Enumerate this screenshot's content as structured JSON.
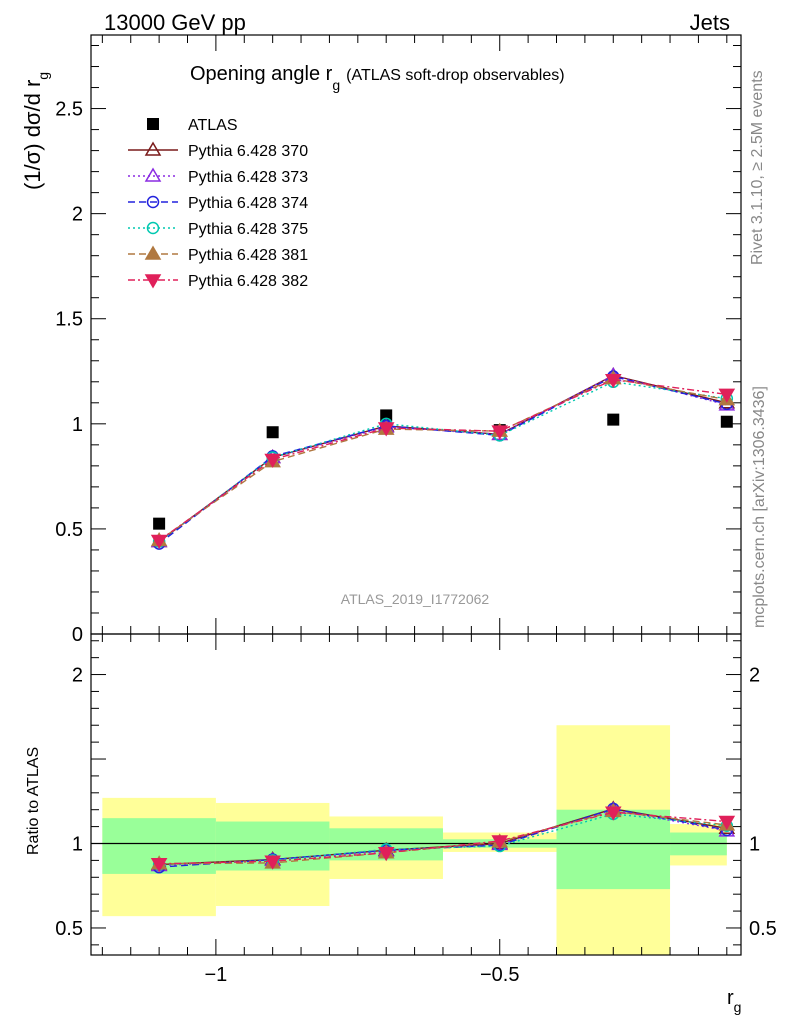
{
  "header": {
    "left": "13000 GeV pp",
    "right": "Jets"
  },
  "side_text": {
    "top": "Rivet 3.1.10, ≥ 2.5M events",
    "bottom": "mcplots.cern.ch [arXiv:1306.3436]"
  },
  "watermark": "ATLAS_2019_I1772062",
  "chart_data": [
    {
      "type": "scatter",
      "title": "Opening angle r",
      "title_sub": "g",
      "title_paren": "(ATLAS soft-drop observables)",
      "ylabel": "(1/σ) dσ/d r",
      "ylabel_sub": "g",
      "xlabel": "",
      "ylim": [
        0,
        2.85
      ],
      "xlim": [
        -1.22,
        -0.075
      ],
      "y_ticks": [
        "0",
        "0.5",
        "1",
        "1.5",
        "2",
        "2.5"
      ],
      "legend_position": "top-left",
      "x": [
        -1.1,
        -0.9,
        -0.7,
        -0.5,
        -0.3,
        -0.1
      ],
      "bin_edges": [
        -1.2,
        -1.0,
        -0.8,
        -0.6,
        -0.4,
        -0.2,
        -0.1
      ],
      "series": [
        {
          "name": "ATLAS",
          "color": "#000000",
          "marker": "square",
          "dash": "",
          "values": [
            0.525,
            0.96,
            1.04,
            0.97,
            1.02,
            1.01
          ]
        },
        {
          "name": "Pythia 6.428 370",
          "color": "#7a1a1a",
          "marker": "triangle-open",
          "dash": "",
          "values": [
            0.44,
            0.84,
            0.99,
            0.95,
            1.23,
            1.1
          ]
        },
        {
          "name": "Pythia 6.428 373",
          "color": "#8a2be2",
          "marker": "triangle-open",
          "dash": "2,3",
          "values": [
            0.44,
            0.84,
            0.985,
            0.95,
            1.23,
            1.09
          ]
        },
        {
          "name": "Pythia 6.428 374",
          "color": "#2222dd",
          "marker": "circle-open",
          "dash": "7,4",
          "values": [
            0.43,
            0.845,
            0.99,
            0.945,
            1.225,
            1.095
          ]
        },
        {
          "name": "Pythia 6.428 375",
          "color": "#00c8b0",
          "marker": "circle-open",
          "dash": "2,3",
          "values": [
            0.44,
            0.84,
            1.0,
            0.945,
            1.2,
            1.12
          ]
        },
        {
          "name": "Pythia 6.428 381",
          "color": "#b07840",
          "marker": "triangle-filled",
          "dash": "7,4",
          "values": [
            0.445,
            0.82,
            0.975,
            0.965,
            1.215,
            1.115
          ]
        },
        {
          "name": "Pythia 6.428 382",
          "color": "#e0205a",
          "marker": "triangle-down-filled",
          "dash": "7,3,2,3",
          "values": [
            0.445,
            0.83,
            0.98,
            0.965,
            1.21,
            1.14
          ]
        }
      ]
    },
    {
      "type": "scatter",
      "title": "",
      "ylabel": "Ratio to ATLAS",
      "xlabel": "r",
      "xlabel_sub": "g",
      "ylim": [
        0.34,
        2.24
      ],
      "xlim": [
        -1.22,
        -0.075
      ],
      "y_ticks": [
        "0.5",
        "1",
        "2"
      ],
      "x_ticks": [
        "−1",
        "−0.5"
      ],
      "reference_line": 1,
      "x": [
        -1.1,
        -0.9,
        -0.7,
        -0.5,
        -0.3,
        -0.1
      ],
      "bands": {
        "inner": {
          "color": "#99ff99",
          "low": [
            0.82,
            0.84,
            0.9,
            0.975,
            0.73,
            0.93
          ],
          "high": [
            1.15,
            1.13,
            1.09,
            1.025,
            1.2,
            1.065
          ]
        },
        "outer": {
          "color": "#ffff99",
          "low": [
            0.57,
            0.63,
            0.79,
            0.95,
            0.34,
            0.87
          ],
          "high": [
            1.27,
            1.24,
            1.16,
            1.065,
            1.7,
            1.115
          ]
        }
      },
      "series": [
        {
          "name": "Pythia 6.428 370",
          "color": "#7a1a1a",
          "marker": "triangle-open",
          "dash": "",
          "values": [
            0.875,
            0.905,
            0.96,
            1.0,
            1.205,
            1.09
          ]
        },
        {
          "name": "Pythia 6.428 373",
          "color": "#8a2be2",
          "marker": "triangle-open",
          "dash": "2,3",
          "values": [
            0.87,
            0.9,
            0.955,
            0.995,
            1.2,
            1.075
          ]
        },
        {
          "name": "Pythia 6.428 374",
          "color": "#2222dd",
          "marker": "circle-open",
          "dash": "7,4",
          "values": [
            0.86,
            0.905,
            0.96,
            0.99,
            1.205,
            1.08
          ]
        },
        {
          "name": "Pythia 6.428 375",
          "color": "#00c8b0",
          "marker": "circle-open",
          "dash": "2,3",
          "values": [
            0.875,
            0.9,
            0.965,
            0.985,
            1.175,
            1.105
          ]
        },
        {
          "name": "Pythia 6.428 381",
          "color": "#b07840",
          "marker": "triangle-filled",
          "dash": "7,4",
          "values": [
            0.88,
            0.885,
            0.945,
            1.01,
            1.19,
            1.11
          ]
        },
        {
          "name": "Pythia 6.428 382",
          "color": "#e0205a",
          "marker": "triangle-down-filled",
          "dash": "7,3,2,3",
          "values": [
            0.88,
            0.895,
            0.945,
            1.015,
            1.185,
            1.13
          ]
        }
      ]
    }
  ]
}
